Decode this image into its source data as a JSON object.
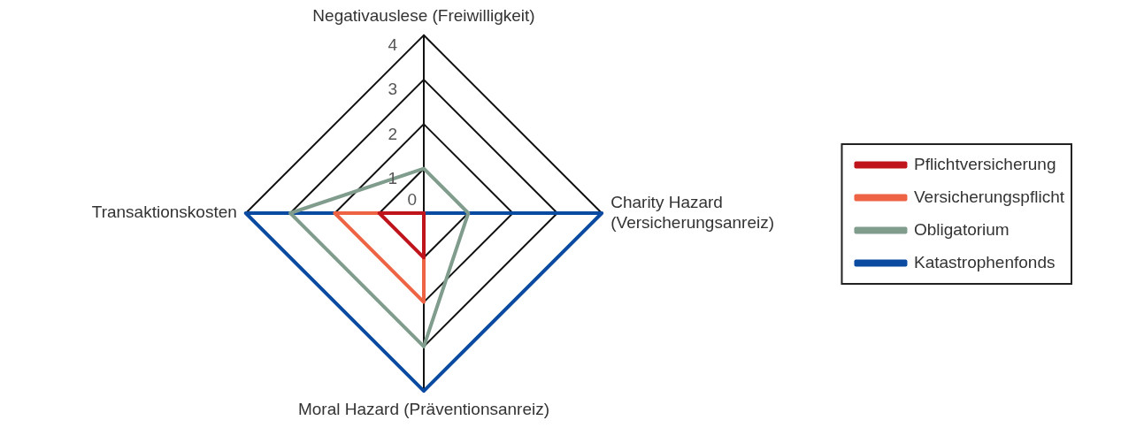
{
  "chart_data": {
    "type": "radar",
    "categories": [
      "Negativauslese (Freiwilligkeit)",
      "Charity Hazard (Versicherungsanreiz)",
      "Moral Hazard (Präventionsanreiz)",
      "Transaktionskosten"
    ],
    "series": [
      {
        "name": "Pflichtversicherung",
        "color": "#c0141c",
        "values": [
          0,
          0,
          1,
          1
        ]
      },
      {
        "name": "Versicherungspflicht",
        "color": "#ee6344",
        "values": [
          0,
          0,
          2,
          2
        ]
      },
      {
        "name": "Obligatorium",
        "color": "#7f9c8c",
        "values": [
          1,
          1,
          3,
          3
        ]
      },
      {
        "name": "Katastrophenfonds",
        "color": "#0a4aa0",
        "values": [
          0,
          4,
          4,
          4
        ]
      }
    ],
    "ylim": [
      0,
      4
    ],
    "yticks": [
      0,
      1,
      2,
      3,
      4
    ],
    "grid": true,
    "legend": "right",
    "marker": "none",
    "line_style": "solid"
  }
}
